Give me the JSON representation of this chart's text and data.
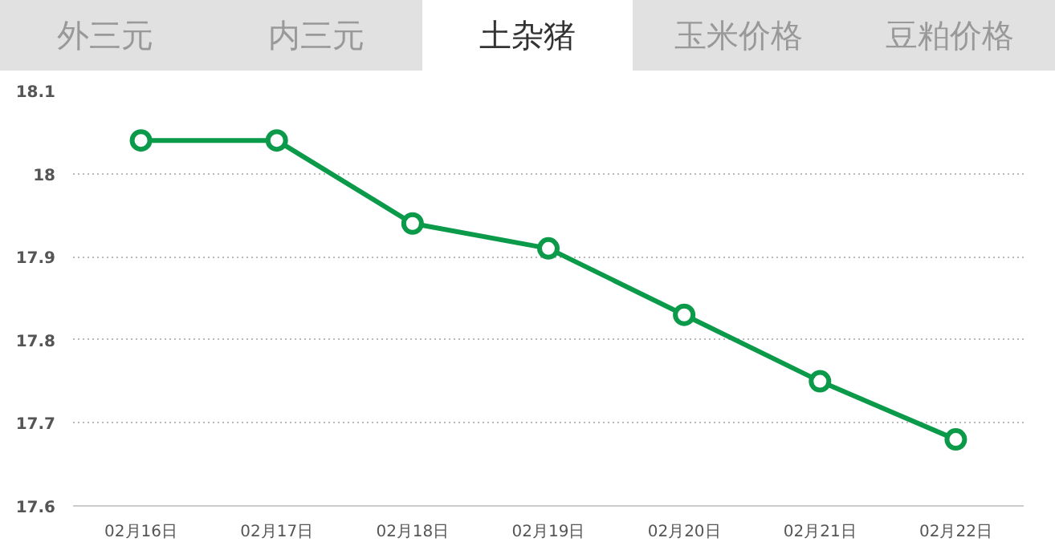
{
  "chart_data": {
    "type": "line",
    "title": "土杂猪",
    "annotations": [
      "外三元",
      "内三元",
      "玉米价格",
      "豆粕价格"
    ],
    "categories": [
      "02月16日",
      "02月17日",
      "02月18日",
      "02月19日",
      "02月20日",
      "02月21日",
      "02月22日"
    ],
    "series": [
      {
        "color": "#0a9a4a",
        "values": [
          18.04,
          18.04,
          17.94,
          17.91,
          17.83,
          17.75,
          17.68
        ]
      }
    ],
    "ylim": [
      17.6,
      18.1
    ],
    "yticks": [
      17.6,
      17.7,
      17.8,
      17.9,
      18,
      18.1
    ],
    "grid": "y",
    "marker": "circle",
    "line_style": "solid"
  }
}
